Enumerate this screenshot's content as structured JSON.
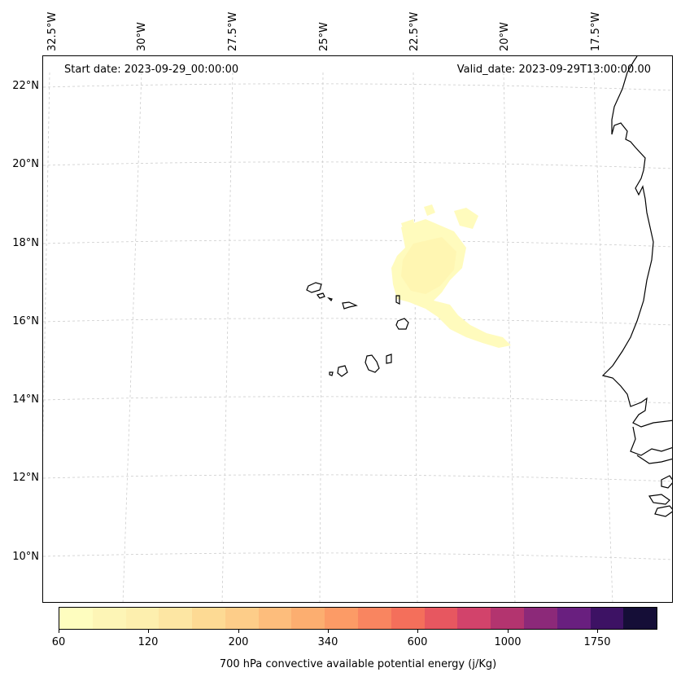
{
  "header": {
    "start_date": "Start date: 2023-09-29_00:00:00",
    "valid_date": "Valid_date: 2023-09-29T13:00:00.00"
  },
  "longitude_labels": [
    "32.5°W",
    "30°W",
    "27.5°W",
    "25°W",
    "22.5°W",
    "20°W",
    "17.5°W"
  ],
  "latitude_labels": [
    "22°N",
    "20°N",
    "18°N",
    "16°N",
    "14°N",
    "12°N",
    "10°N"
  ],
  "colorbar": {
    "label": "700 hPa convective available potential energy (j/Kg)",
    "ticks": [
      "60",
      "120",
      "200",
      "340",
      "600",
      "1000",
      "1750"
    ],
    "colors": [
      "#fefdbf",
      "#fdf5b6",
      "#fdefae",
      "#fde6a3",
      "#fdda94",
      "#fdcd89",
      "#fdbd7c",
      "#fcae70",
      "#fc9b66",
      "#f98560",
      "#f46f5b",
      "#e75760",
      "#d2436b",
      "#b3346f",
      "#8c2979",
      "#691f7f",
      "#3d1264",
      "#150e37"
    ]
  },
  "map": {
    "projection": "lambert-conformal",
    "gridlines": true,
    "field_colors": [
      "#fffbb9",
      "#fff5b0"
    ],
    "coastline_color": "#000000"
  }
}
